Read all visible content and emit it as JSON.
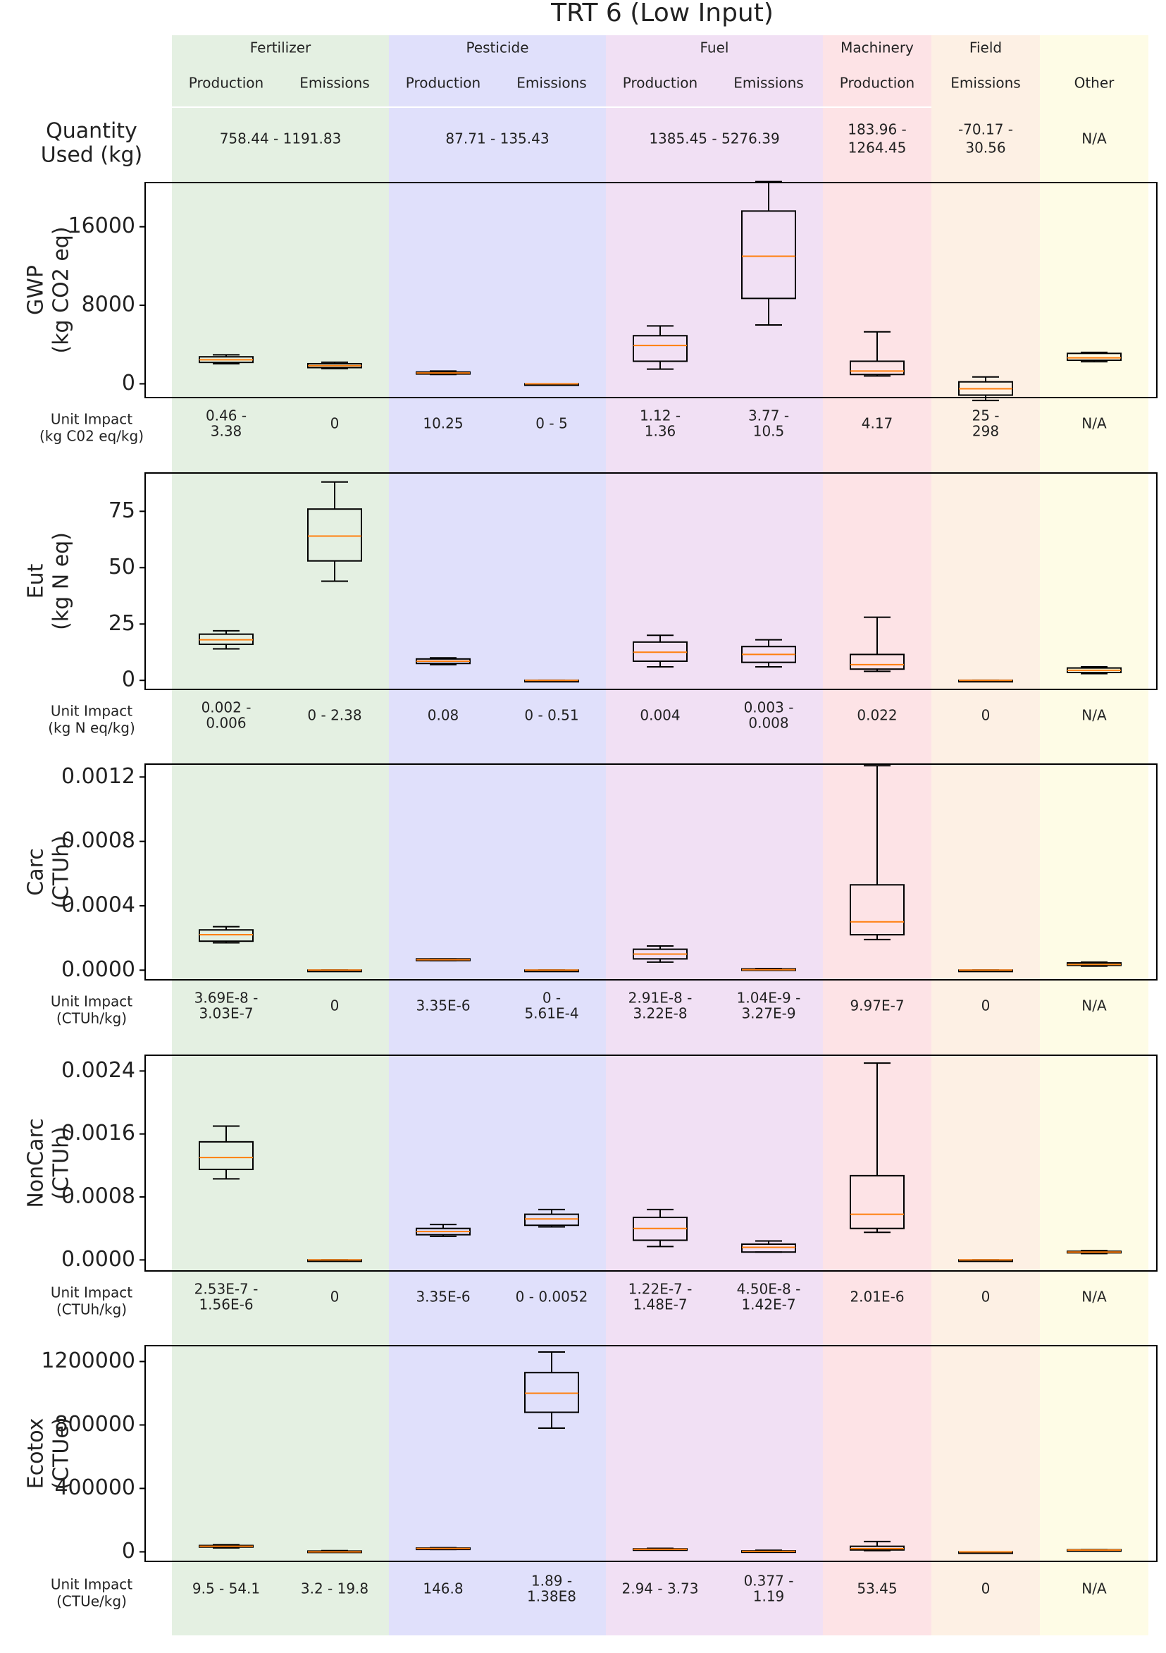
{
  "title": "TRT 6 (Low Input)",
  "column_colors": [
    "#e4f0e2",
    "#e4f0e2",
    "#e0e0fb",
    "#e0e0fb",
    "#f1e0f4",
    "#f1e0f4",
    "#fde3e6",
    "#fdf0e4",
    "#fefce6"
  ],
  "group_headers": [
    {
      "label": "Fertilizer",
      "cols": [
        0,
        1
      ]
    },
    {
      "label": "Pesticide",
      "cols": [
        2,
        3
      ]
    },
    {
      "label": "Fuel",
      "cols": [
        4,
        5
      ]
    },
    {
      "label": "Machinery",
      "cols": [
        6
      ]
    },
    {
      "label": "Field",
      "cols": [
        7
      ]
    }
  ],
  "sub_headers": [
    "Production",
    "Emissions",
    "Production",
    "Emissions",
    "Production",
    "Emissions",
    "Production",
    "Emissions",
    "Other"
  ],
  "quantity": {
    "label": [
      "Quantity",
      "Used (kg)"
    ],
    "cells": [
      {
        "text": [
          "758.44 - 1191.83"
        ],
        "cols": [
          0,
          1
        ]
      },
      {
        "text": [
          "87.71 - 135.43"
        ],
        "cols": [
          2,
          3
        ]
      },
      {
        "text": [
          "1385.45 - 5276.39"
        ],
        "cols": [
          4,
          5
        ]
      },
      {
        "text": [
          "183.96 -",
          "1264.45"
        ],
        "cols": [
          6
        ]
      },
      {
        "text": [
          "-70.17 -",
          "30.56"
        ],
        "cols": [
          7
        ]
      },
      {
        "text": [
          "N/A"
        ],
        "cols": [
          8
        ]
      }
    ]
  },
  "chart_data": [
    {
      "type": "box",
      "ylabel": [
        "GWP",
        "(kg CO2 eq)"
      ],
      "ylim": [
        -1400,
        20500
      ],
      "yticks": [
        0,
        8000,
        16000
      ],
      "ytick_labels": [
        "0",
        "8000",
        "16000"
      ],
      "boxes": [
        {
          "whislo": 2050,
          "q1": 2180,
          "med": 2450,
          "q3": 2750,
          "whishi": 2950
        },
        {
          "whislo": 1550,
          "q1": 1650,
          "med": 1850,
          "q3": 2050,
          "whishi": 2200
        },
        {
          "whislo": 950,
          "q1": 1000,
          "med": 1100,
          "q3": 1200,
          "whishi": 1300
        },
        {
          "whislo": 0,
          "q1": 0,
          "med": 0,
          "q3": 0,
          "whishi": 0
        },
        {
          "whislo": 1500,
          "q1": 2300,
          "med": 3900,
          "q3": 4900,
          "whishi": 5900
        },
        {
          "whislo": 6000,
          "q1": 8700,
          "med": 13000,
          "q3": 17600,
          "whishi": 20600
        },
        {
          "whislo": 800,
          "q1": 950,
          "med": 1300,
          "q3": 2300,
          "whishi": 5300
        },
        {
          "whislo": -1700,
          "q1": -1150,
          "med": -500,
          "q3": 200,
          "whishi": 700
        },
        {
          "whislo": 2250,
          "q1": 2400,
          "med": 2650,
          "q3": 3100,
          "whishi": 3200
        }
      ],
      "unit_label": [
        "Unit Impact",
        "(kg C02 eq/kg)"
      ],
      "unit_values": [
        [
          "0.46 -",
          "3.38"
        ],
        [
          "0"
        ],
        [
          "10.25"
        ],
        [
          "0 - 5"
        ],
        [
          "1.12 -",
          "1.36"
        ],
        [
          "3.77 -",
          "10.5"
        ],
        [
          "4.17"
        ],
        [
          "25 -",
          "298"
        ],
        [
          "N/A"
        ]
      ]
    },
    {
      "type": "box",
      "ylabel": [
        "Eut",
        "(kg N eq)"
      ],
      "ylim": [
        -4,
        92
      ],
      "yticks": [
        0,
        25,
        50,
        75
      ],
      "ytick_labels": [
        "0",
        "25",
        "50",
        "75"
      ],
      "boxes": [
        {
          "whislo": 14,
          "q1": 16,
          "med": 18,
          "q3": 20.5,
          "whishi": 22
        },
        {
          "whislo": 44,
          "q1": 53,
          "med": 64,
          "q3": 76,
          "whishi": 88
        },
        {
          "whislo": 7,
          "q1": 7.5,
          "med": 8.5,
          "q3": 9.5,
          "whishi": 10
        },
        {
          "whislo": 0,
          "q1": 0,
          "med": 0,
          "q3": 0,
          "whishi": 0
        },
        {
          "whislo": 6,
          "q1": 8.5,
          "med": 12.5,
          "q3": 17,
          "whishi": 20
        },
        {
          "whislo": 6,
          "q1": 8,
          "med": 11.5,
          "q3": 15,
          "whishi": 18
        },
        {
          "whislo": 4,
          "q1": 5,
          "med": 7,
          "q3": 11.5,
          "whishi": 28
        },
        {
          "whislo": 0,
          "q1": 0,
          "med": 0,
          "q3": 0,
          "whishi": 0
        },
        {
          "whislo": 3,
          "q1": 3.5,
          "med": 4.5,
          "q3": 5.5,
          "whishi": 6
        }
      ],
      "unit_label": [
        "Unit Impact",
        "(kg N eq/kg)"
      ],
      "unit_values": [
        [
          "0.002 -",
          "0.006"
        ],
        [
          "0 - 2.38"
        ],
        [
          "0.08"
        ],
        [
          "0 - 0.51"
        ],
        [
          "0.004"
        ],
        [
          "0.003 -",
          "0.008"
        ],
        [
          "0.022"
        ],
        [
          "0"
        ],
        [
          "N/A"
        ]
      ]
    },
    {
      "type": "box",
      "ylabel": [
        "Carc",
        "(CTUh)"
      ],
      "ylim": [
        -6e-05,
        0.00128
      ],
      "yticks": [
        0,
        0.0004,
        0.0008,
        0.0012
      ],
      "ytick_labels": [
        "0.0000",
        "0.0004",
        "0.0008",
        "0.0012"
      ],
      "boxes": [
        {
          "whislo": 0.00017,
          "q1": 0.00018,
          "med": 0.00022,
          "q3": 0.00025,
          "whishi": 0.00027
        },
        {
          "whislo": 0,
          "q1": 0,
          "med": 0,
          "q3": 0,
          "whishi": 0
        },
        {
          "whislo": 6e-05,
          "q1": 6e-05,
          "med": 6.5e-05,
          "q3": 7e-05,
          "whishi": 7e-05
        },
        {
          "whislo": 0,
          "q1": 0,
          "med": 0,
          "q3": 0,
          "whishi": 0
        },
        {
          "whislo": 5e-05,
          "q1": 7e-05,
          "med": 0.0001,
          "q3": 0.00013,
          "whishi": 0.00015
        },
        {
          "whislo": 0,
          "q1": 0,
          "med": 3e-06,
          "q3": 8e-06,
          "whishi": 1e-05
        },
        {
          "whislo": 0.00019,
          "q1": 0.00022,
          "med": 0.0003,
          "q3": 0.00053,
          "whishi": 0.00127
        },
        {
          "whislo": 0,
          "q1": 0,
          "med": 0,
          "q3": 0,
          "whishi": 0
        },
        {
          "whislo": 2.5e-05,
          "q1": 3e-05,
          "med": 3.5e-05,
          "q3": 4.5e-05,
          "whishi": 5e-05
        }
      ],
      "unit_label": [
        "Unit Impact",
        "(CTUh/kg)"
      ],
      "unit_values": [
        [
          "3.69E-8 -",
          "3.03E-7"
        ],
        [
          "0"
        ],
        [
          "3.35E-6"
        ],
        [
          "0 -",
          "5.61E-4"
        ],
        [
          "2.91E-8 -",
          "3.22E-8"
        ],
        [
          "1.04E-9 -",
          "3.27E-9"
        ],
        [
          "9.97E-7"
        ],
        [
          "0"
        ],
        [
          "N/A"
        ]
      ]
    },
    {
      "type": "box",
      "ylabel": [
        "NonCarc",
        "(CTUh)"
      ],
      "ylim": [
        -0.00014,
        0.0026
      ],
      "yticks": [
        0,
        0.0008,
        0.0016,
        0.0024
      ],
      "ytick_labels": [
        "0.0000",
        "0.0008",
        "0.0016",
        "0.0024"
      ],
      "boxes": [
        {
          "whislo": 0.00103,
          "q1": 0.00115,
          "med": 0.0013,
          "q3": 0.0015,
          "whishi": 0.0017
        },
        {
          "whislo": 0,
          "q1": 0,
          "med": 0,
          "q3": 0,
          "whishi": 0
        },
        {
          "whislo": 0.0003,
          "q1": 0.00032,
          "med": 0.00036,
          "q3": 0.0004,
          "whishi": 0.00045
        },
        {
          "whislo": 0.00042,
          "q1": 0.00044,
          "med": 0.00052,
          "q3": 0.00058,
          "whishi": 0.00064
        },
        {
          "whislo": 0.00017,
          "q1": 0.00025,
          "med": 0.0004,
          "q3": 0.00054,
          "whishi": 0.00064
        },
        {
          "whislo": 0.0001,
          "q1": 0.0001,
          "med": 0.00016,
          "q3": 0.0002,
          "whishi": 0.00024
        },
        {
          "whislo": 0.00035,
          "q1": 0.0004,
          "med": 0.00058,
          "q3": 0.00107,
          "whishi": 0.0025
        },
        {
          "whislo": 0,
          "q1": 0,
          "med": 0,
          "q3": 0,
          "whishi": 0
        },
        {
          "whislo": 8e-05,
          "q1": 9e-05,
          "med": 0.0001,
          "q3": 0.00011,
          "whishi": 0.00012
        }
      ],
      "unit_label": [
        "Unit Impact",
        "(CTUh/kg)"
      ],
      "unit_values": [
        [
          "2.53E-7 -",
          "1.56E-6"
        ],
        [
          "0"
        ],
        [
          "3.35E-6"
        ],
        [
          "0 - 0.0052"
        ],
        [
          "1.22E-7 -",
          "1.48E-7"
        ],
        [
          "4.50E-8 -",
          "1.42E-7"
        ],
        [
          "2.01E-6"
        ],
        [
          "0"
        ],
        [
          "N/A"
        ]
      ]
    },
    {
      "type": "box",
      "ylabel": [
        "Ecotox",
        "(CTUe)"
      ],
      "ylim": [
        -60000,
        1300000
      ],
      "yticks": [
        0,
        400000,
        800000,
        1200000
      ],
      "ytick_labels": [
        "0",
        "400000",
        "800000",
        "1200000"
      ],
      "boxes": [
        {
          "whislo": 25000,
          "q1": 30000,
          "med": 35000,
          "q3": 40000,
          "whishi": 45000
        },
        {
          "whislo": 0,
          "q1": 0,
          "med": 0,
          "q3": 5000,
          "whishi": 8000
        },
        {
          "whislo": 15000,
          "q1": 18000,
          "med": 21000,
          "q3": 24000,
          "whishi": 26000
        },
        {
          "whislo": 780000,
          "q1": 880000,
          "med": 1000000,
          "q3": 1130000,
          "whishi": 1260000
        },
        {
          "whislo": 12000,
          "q1": 13000,
          "med": 16000,
          "q3": 19000,
          "whishi": 22000
        },
        {
          "whislo": 0,
          "q1": 0,
          "med": 3000,
          "q3": 6000,
          "whishi": 10000
        },
        {
          "whislo": 8000,
          "q1": 12000,
          "med": 20000,
          "q3": 35000,
          "whishi": 65000
        },
        {
          "whislo": 0,
          "q1": 0,
          "med": 0,
          "q3": 0,
          "whishi": 0
        },
        {
          "whislo": 8000,
          "q1": 9000,
          "med": 11000,
          "q3": 13000,
          "whishi": 14000
        }
      ],
      "unit_label": [
        "Unit Impact",
        "(CTUe/kg)"
      ],
      "unit_values": [
        [
          "9.5 - 54.1"
        ],
        [
          "3.2 - 19.8"
        ],
        [
          "146.8"
        ],
        [
          "1.89 -",
          "1.38E8"
        ],
        [
          "2.94 - 3.73"
        ],
        [
          "0.377 -",
          "1.19"
        ],
        [
          "53.45"
        ],
        [
          "0"
        ],
        [
          "N/A"
        ]
      ]
    }
  ]
}
